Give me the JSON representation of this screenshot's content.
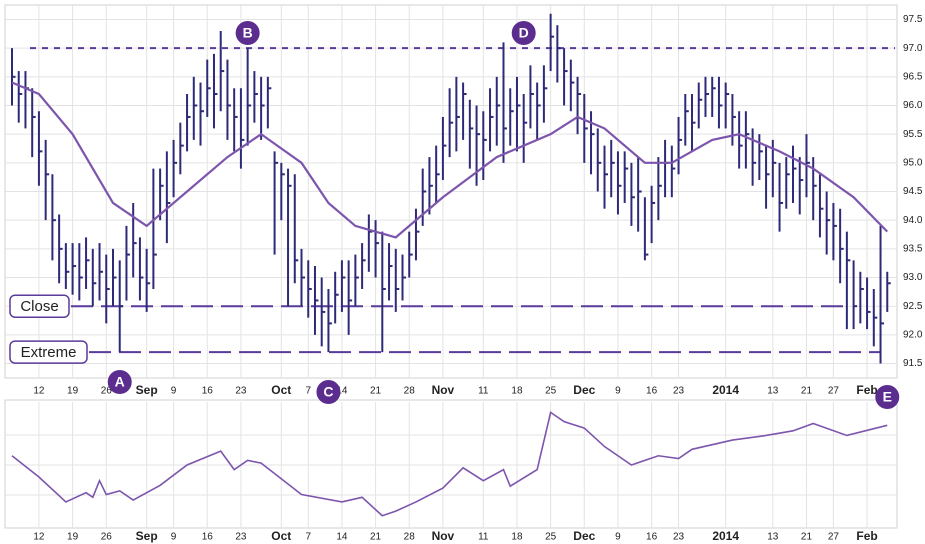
{
  "chart_data": [
    {
      "type": "ohlc",
      "xlim": [
        0,
        131
      ],
      "xticks": [
        {
          "value": 4,
          "label": "12"
        },
        {
          "value": 9,
          "label": "19"
        },
        {
          "value": 14,
          "label": "26"
        },
        {
          "value": 20,
          "label": "Sep"
        },
        {
          "value": 24,
          "label": "9"
        },
        {
          "value": 29,
          "label": "16"
        },
        {
          "value": 34,
          "label": "23"
        },
        {
          "value": 40,
          "label": "Oct"
        },
        {
          "value": 44,
          "label": "7"
        },
        {
          "value": 49,
          "label": "14"
        },
        {
          "value": 54,
          "label": "21"
        },
        {
          "value": 59,
          "label": "28"
        },
        {
          "value": 64,
          "label": "Nov"
        },
        {
          "value": 70,
          "label": "11"
        },
        {
          "value": 75,
          "label": "18"
        },
        {
          "value": 80,
          "label": "25"
        },
        {
          "value": 85,
          "label": "Dec"
        },
        {
          "value": 90,
          "label": "9"
        },
        {
          "value": 95,
          "label": "16"
        },
        {
          "value": 99,
          "label": "23"
        },
        {
          "value": 106,
          "label": "2014"
        },
        {
          "value": 113,
          "label": "13"
        },
        {
          "value": 118,
          "label": "21"
        },
        {
          "value": 122,
          "label": "27"
        },
        {
          "value": 127,
          "label": "Feb"
        }
      ],
      "ylim": [
        91.3,
        97.7
      ],
      "yticks": [
        91.5,
        {
          "value": 92,
          "label": "92.0"
        },
        92.5,
        {
          "value": 93,
          "label": "93.0"
        },
        93.5,
        {
          "value": 94,
          "label": "94.0"
        },
        94.5,
        {
          "value": 95,
          "label": "95.0"
        },
        95.5,
        {
          "value": 96,
          "label": "96.0"
        },
        96.5,
        {
          "value": 97,
          "label": "97.0"
        },
        97.5
      ],
      "grid": true,
      "color": "#2d2a78",
      "high": [
        97.0,
        96.6,
        96.6,
        96.3,
        95.9,
        95.4,
        94.8,
        94.1,
        93.6,
        93.6,
        93.6,
        93.7,
        93.5,
        93.6,
        93.4,
        93.5,
        93.3,
        93.9,
        94.3,
        93.7,
        93.5,
        94.9,
        94.9,
        95.2,
        95.4,
        95.7,
        96.2,
        96.5,
        96.4,
        96.8,
        96.9,
        97.3,
        96.8,
        96.3,
        96.3,
        97.0,
        96.6,
        96.5,
        96.5,
        95.2,
        95.0,
        94.9,
        94.8,
        93.5,
        93.3,
        93.2,
        93.0,
        92.8,
        93.1,
        93.3,
        93.3,
        93.4,
        93.6,
        94.1,
        94.0,
        93.8,
        93.6,
        93.5,
        93.4,
        93.8,
        94.2,
        94.9,
        95.1,
        95.3,
        95.8,
        96.3,
        96.5,
        96.4,
        96.1,
        96.0,
        95.9,
        96.3,
        96.5,
        97.1,
        96.3,
        96.5,
        96.2,
        96.7,
        96.4,
        96.7,
        97.6,
        97.4,
        97.0,
        96.8,
        96.5,
        96.2,
        95.9,
        95.6,
        95.3,
        95.4,
        95.2,
        95.2,
        95.0,
        95.1,
        94.4,
        94.6,
        95.1,
        95.4,
        95.3,
        95.8,
        96.2,
        96.2,
        96.4,
        96.5,
        96.5,
        96.5,
        96.4,
        96.2,
        95.9,
        95.9,
        95.6,
        95.5,
        95.3,
        95.4,
        95.0,
        95.1,
        95.3,
        95.1,
        95.5,
        95.1,
        94.8,
        94.5,
        94.3,
        94.2,
        93.8,
        93.3,
        93.1,
        93.0,
        92.8,
        93.9,
        93.1
      ],
      "low": [
        96.0,
        95.7,
        95.6,
        95.1,
        94.6,
        94.0,
        93.3,
        92.9,
        92.8,
        92.7,
        92.6,
        92.8,
        92.5,
        92.6,
        92.2,
        92.5,
        91.7,
        92.6,
        93.0,
        92.6,
        92.4,
        92.8,
        94.0,
        93.6,
        94.4,
        94.8,
        95.2,
        95.4,
        95.3,
        95.8,
        95.6,
        95.9,
        95.4,
        95.2,
        94.9,
        95.3,
        95.7,
        95.4,
        95.6,
        93.4,
        94.0,
        92.5,
        92.9,
        92.5,
        92.3,
        92.0,
        91.8,
        91.7,
        92.2,
        92.4,
        92.0,
        92.5,
        92.8,
        93.1,
        93.0,
        91.7,
        92.6,
        92.4,
        92.6,
        93.0,
        93.3,
        93.9,
        94.1,
        94.3,
        94.7,
        95.1,
        95.2,
        95.4,
        94.9,
        94.6,
        94.7,
        95.2,
        95.3,
        95.0,
        95.3,
        95.2,
        95.0,
        95.6,
        95.4,
        95.7,
        96.6,
        96.4,
        96.0,
        95.9,
        95.5,
        95.0,
        94.8,
        94.5,
        94.2,
        94.4,
        94.1,
        94.3,
        93.9,
        93.8,
        93.3,
        93.6,
        94.0,
        94.4,
        94.4,
        94.8,
        95.3,
        95.2,
        95.6,
        95.8,
        95.8,
        95.6,
        95.6,
        95.3,
        94.9,
        94.9,
        94.6,
        94.7,
        94.2,
        94.4,
        93.8,
        94.2,
        94.3,
        94.1,
        94.4,
        94.0,
        93.7,
        93.4,
        93.3,
        92.9,
        92.1,
        92.1,
        92.2,
        92.1,
        91.8,
        91.5,
        92.4
      ],
      "close": [
        96.5,
        96.2,
        96.3,
        95.8,
        95.2,
        94.8,
        94.0,
        93.5,
        93.1,
        93.2,
        93.0,
        93.3,
        92.9,
        93.1,
        92.8,
        93.0,
        92.5,
        93.4,
        93.6,
        93.0,
        92.9,
        93.4,
        94.6,
        94.3,
        95.0,
        95.3,
        95.8,
        96.0,
        95.9,
        96.3,
        96.2,
        96.6,
        96.0,
        95.8,
        95.4,
        96.0,
        96.2,
        96.0,
        96.3,
        95.0,
        94.8,
        94.6,
        93.3,
        93.0,
        92.8,
        92.6,
        92.4,
        92.2,
        92.7,
        93.0,
        92.6,
        93.0,
        93.3,
        93.8,
        93.6,
        92.8,
        93.2,
        92.8,
        93.0,
        93.4,
        93.8,
        94.5,
        94.6,
        94.8,
        95.3,
        95.7,
        95.8,
        96.2,
        95.6,
        95.5,
        95.4,
        95.8,
        96.0,
        95.6,
        95.9,
        96.0,
        95.7,
        96.2,
        96.0,
        96.3,
        97.2,
        97.0,
        96.6,
        96.4,
        96.2,
        95.6,
        95.5,
        95.0,
        94.8,
        95.0,
        94.6,
        94.9,
        94.4,
        94.5,
        93.4,
        94.3,
        94.6,
        95.0,
        94.9,
        95.4,
        95.9,
        95.7,
        96.1,
        96.2,
        96.3,
        96.0,
        96.2,
        95.8,
        95.3,
        95.5,
        95.0,
        95.2,
        94.8,
        95.0,
        94.3,
        94.8,
        94.9,
        94.7,
        95.0,
        94.6,
        94.2,
        94.0,
        93.9,
        93.5,
        93.3,
        92.5,
        92.8,
        92.4,
        92.3,
        92.2,
        92.9
      ],
      "moving_average": {
        "color": "#7d55ad",
        "x": [
          0,
          4,
          9,
          15,
          20,
          26,
          32,
          37,
          43,
          47,
          51,
          57,
          64,
          72,
          80,
          84,
          88,
          94,
          98,
          104,
          108,
          114,
          119,
          125,
          130
        ],
        "values": [
          96.4,
          96.2,
          95.5,
          94.3,
          93.9,
          94.5,
          95.1,
          95.5,
          95.0,
          94.3,
          93.9,
          93.7,
          94.4,
          95.1,
          95.5,
          95.8,
          95.6,
          95.0,
          95.0,
          95.4,
          95.5,
          95.2,
          94.9,
          94.4,
          93.8
        ]
      },
      "levels": [
        {
          "value": 97.0
        },
        {
          "label": "Close",
          "value": 92.5
        },
        {
          "label": "Extreme",
          "value": 91.7
        }
      ],
      "annotations": [
        {
          "label": "A",
          "x": 16,
          "position": "bottom"
        },
        {
          "label": "B",
          "x": 35,
          "position": "top"
        },
        {
          "label": "C",
          "x": 47,
          "position": "bottom"
        },
        {
          "label": "D",
          "x": 76,
          "position": "top"
        },
        {
          "label": "E",
          "x": 130,
          "position": "bottom"
        }
      ]
    },
    {
      "type": "line",
      "xlim": [
        0,
        131
      ],
      "xticks": [
        {
          "value": 4,
          "label": "12"
        },
        {
          "value": 9,
          "label": "19"
        },
        {
          "value": 14,
          "label": "26"
        },
        {
          "value": 20,
          "label": "Sep"
        },
        {
          "value": 24,
          "label": "9"
        },
        {
          "value": 29,
          "label": "16"
        },
        {
          "value": 34,
          "label": "23"
        },
        {
          "value": 40,
          "label": "Oct"
        },
        {
          "value": 44,
          "label": "7"
        },
        {
          "value": 49,
          "label": "14"
        },
        {
          "value": 54,
          "label": "21"
        },
        {
          "value": 59,
          "label": "28"
        },
        {
          "value": 64,
          "label": "Nov"
        },
        {
          "value": 70,
          "label": "11"
        },
        {
          "value": 75,
          "label": "18"
        },
        {
          "value": 80,
          "label": "25"
        },
        {
          "value": 85,
          "label": "Dec"
        },
        {
          "value": 90,
          "label": "9"
        },
        {
          "value": 95,
          "label": "16"
        },
        {
          "value": 99,
          "label": "23"
        },
        {
          "value": 106,
          "label": "2014"
        },
        {
          "value": 113,
          "label": "13"
        },
        {
          "value": 118,
          "label": "21"
        },
        {
          "value": 122,
          "label": "27"
        },
        {
          "value": 127,
          "label": "Feb"
        }
      ],
      "ylim": [
        0,
        130
      ],
      "grid": true,
      "color": "#7d55ad",
      "x": [
        0,
        4,
        8,
        11,
        12,
        13,
        14,
        16,
        18,
        22,
        26,
        31,
        33,
        35,
        37,
        43,
        49,
        52,
        55,
        57,
        60,
        64,
        67,
        70,
        73,
        74,
        78,
        80,
        82,
        85,
        88,
        92,
        96,
        99,
        101,
        107,
        112,
        116,
        119,
        124,
        130
      ],
      "values": [
        75,
        52,
        25,
        35,
        30,
        48,
        33,
        37,
        27,
        43,
        65,
        80,
        60,
        70,
        67,
        33,
        25,
        30,
        10,
        15,
        25,
        40,
        62,
        48,
        60,
        42,
        60,
        122,
        112,
        105,
        85,
        65,
        75,
        72,
        82,
        92,
        97,
        102,
        110,
        97,
        108
      ]
    }
  ]
}
